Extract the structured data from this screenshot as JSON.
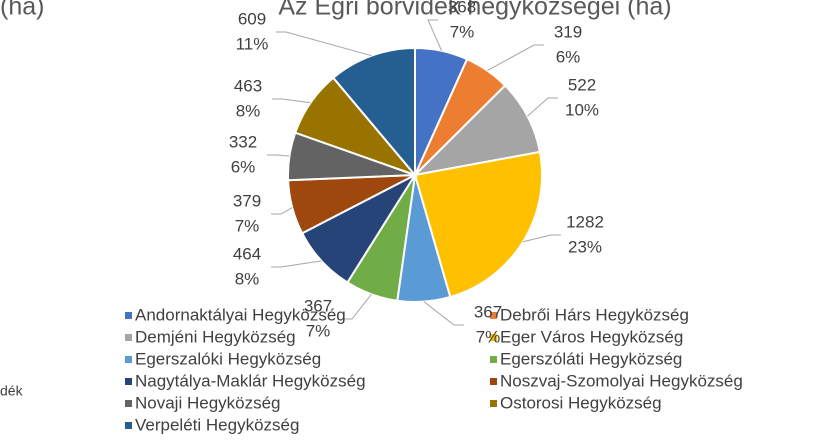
{
  "chart_data": {
    "type": "pie",
    "title": "Az Egri borvidék hegyközségei (ha)",
    "side_fragments": [
      "(ha)",
      "dék"
    ],
    "categories": [
      "Andornaktályai Hegyközség",
      "Debrői Hárs Hegyközség",
      "Demjéni Hegyközség",
      "Eger Város Hegyközség",
      "Egerszalóki Hegyközség",
      "Egerszóláti Hegyközség",
      "Nagytálya-Maklár Hegyközség",
      "Noszvaj-Szomolyai Hegyközség",
      "Novaji Hegyközség",
      "Ostorosi Hegyközség",
      "Verpeléti Hegyközség"
    ],
    "values": [
      368,
      319,
      522,
      1282,
      367,
      367,
      464,
      379,
      332,
      463,
      609
    ],
    "percent_labels": [
      "7%",
      "6%",
      "10%",
      "23%",
      "7%",
      "7%",
      "8%",
      "7%",
      "6%",
      "8%",
      "11%"
    ],
    "colors": [
      "#4472c4",
      "#ed7d31",
      "#a5a5a5",
      "#ffc000",
      "#5b9bd5",
      "#70ad47",
      "#264478",
      "#9e480e",
      "#636363",
      "#997300",
      "#255e91"
    ],
    "legend": "bottom"
  }
}
